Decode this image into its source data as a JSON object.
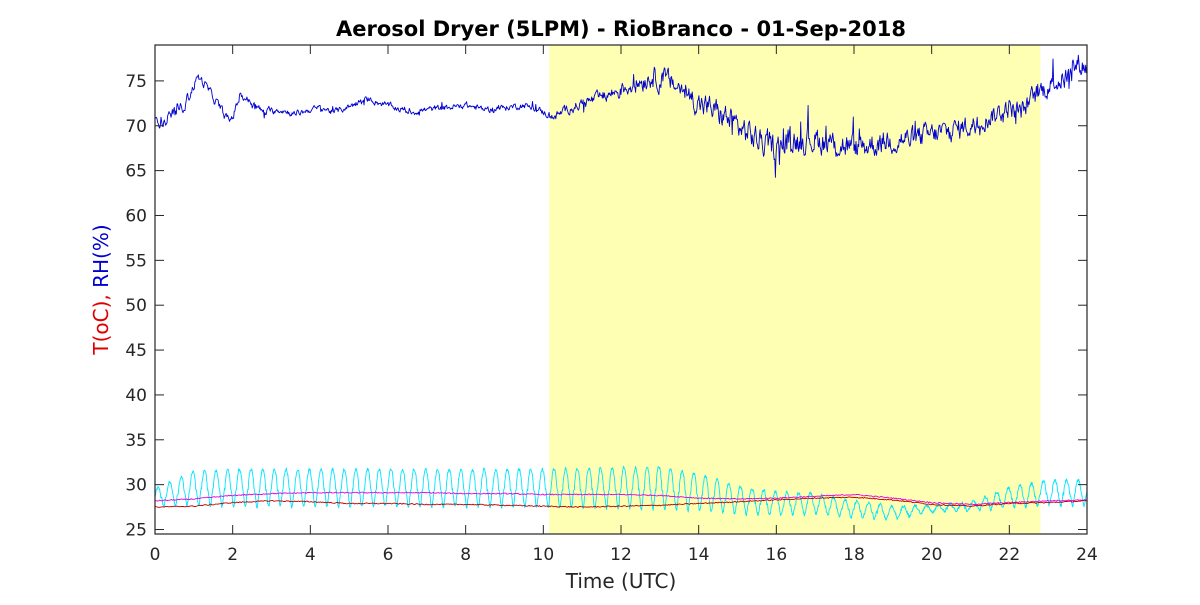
{
  "chart_data": {
    "type": "line",
    "title": "Aerosol Dryer (5LPM) - RioBranco - 01-Sep-2018",
    "xlabel": "Time (UTC)",
    "ylabel_parts": [
      {
        "text": "T(oC),",
        "color": "#e00000"
      },
      {
        "text": " RH(%)",
        "color": "#0000d0"
      }
    ],
    "xlim": [
      0,
      24
    ],
    "ylim": [
      24.5,
      79
    ],
    "x_ticks": [
      0,
      2,
      4,
      6,
      8,
      10,
      12,
      14,
      16,
      18,
      20,
      22,
      24
    ],
    "x_tick_labels": [
      "0",
      "2",
      "4",
      "6",
      "8",
      "10",
      "12",
      "14",
      "16",
      "18",
      "20",
      "22",
      "24"
    ],
    "y_ticks": [
      25,
      30,
      35,
      40,
      45,
      50,
      55,
      60,
      65,
      70,
      75
    ],
    "y_tick_labels": [
      "25",
      "30",
      "35",
      "40",
      "45",
      "50",
      "55",
      "60",
      "65",
      "70",
      "75"
    ],
    "grid": false,
    "daylight_band": {
      "x_start": 10.15,
      "x_end": 22.8,
      "color": "#ffffb3"
    },
    "series": [
      {
        "key": "rh",
        "color": "#0000d0",
        "x": [
          0,
          0.3,
          0.6,
          0.9,
          1.1,
          1.3,
          1.6,
          1.9,
          2.0,
          2.2,
          2.5,
          2.8,
          3.2,
          3.6,
          4.0,
          4.3,
          4.6,
          4.9,
          5.2,
          5.5,
          5.8,
          6.2,
          6.6,
          7.0,
          7.5,
          8.0,
          8.5,
          9.0,
          9.5,
          10.0,
          10.3,
          10.6,
          11.0,
          11.5,
          12.0,
          12.5,
          12.8,
          13.2,
          13.6,
          14.0,
          14.5,
          15.0,
          15.5,
          16.0,
          16.5,
          17.0,
          17.5,
          18.0,
          18.5,
          19.0,
          19.5,
          20.0,
          20.5,
          21.0,
          21.5,
          22.0,
          22.3,
          22.7,
          23.0,
          23.5,
          23.8,
          24.0
        ],
        "values": [
          71.0,
          70.5,
          71.5,
          73.5,
          75.5,
          74.5,
          72.5,
          70.5,
          71.0,
          73.5,
          72.5,
          71.5,
          71.8,
          71.3,
          71.8,
          72.0,
          71.5,
          72.0,
          72.5,
          73.0,
          72.5,
          72.0,
          71.5,
          71.8,
          72.0,
          72.3,
          71.8,
          72.0,
          72.3,
          71.5,
          71.0,
          71.8,
          72.5,
          73.2,
          74.0,
          75.0,
          75.5,
          75.0,
          74.0,
          72.5,
          71.5,
          70.0,
          68.5,
          67.5,
          68.5,
          68.5,
          68.0,
          67.5,
          68.0,
          68.5,
          68.5,
          69.0,
          69.5,
          70.0,
          71.0,
          72.0,
          71.5,
          73.5,
          74.5,
          75.5,
          77.0,
          76.5
        ],
        "noise": [
          0.8,
          0.8,
          0.8,
          0.6,
          0.5,
          0.5,
          0.5,
          0.5,
          0.5,
          0.5,
          0.4,
          0.4,
          0.35,
          0.35,
          0.35,
          0.35,
          0.35,
          0.35,
          0.35,
          0.35,
          0.35,
          0.35,
          0.35,
          0.35,
          0.35,
          0.35,
          0.35,
          0.35,
          0.35,
          0.4,
          0.5,
          0.5,
          0.6,
          0.7,
          0.9,
          1.1,
          1.2,
          1.2,
          1.2,
          1.3,
          1.4,
          1.5,
          1.5,
          1.5,
          1.5,
          1.5,
          1.5,
          1.5,
          1.4,
          1.4,
          1.3,
          1.3,
          1.2,
          1.2,
          1.1,
          1.1,
          1.1,
          1.2,
          1.2,
          1.2,
          1.3,
          1.3
        ]
      },
      {
        "key": "cyan",
        "color": "#00e5ff",
        "x": [
          0,
          1,
          2,
          3,
          4,
          5,
          6,
          7,
          8,
          9,
          10,
          11,
          12,
          13,
          14,
          15,
          16,
          17,
          18,
          19,
          20,
          21,
          22,
          23,
          24
        ],
        "values": [
          28.5,
          29.5,
          29.5,
          29.5,
          29.5,
          29.5,
          29.5,
          29.5,
          29.5,
          29.5,
          29.5,
          29.5,
          29.5,
          29.5,
          29.0,
          28.2,
          27.8,
          27.8,
          27.2,
          26.8,
          27.3,
          27.5,
          28.5,
          29.0,
          29.0
        ],
        "amplitude": [
          1.0,
          2.0,
          2.2,
          2.2,
          2.2,
          2.2,
          2.2,
          2.2,
          2.2,
          2.2,
          2.2,
          2.3,
          2.4,
          2.5,
          2.2,
          1.6,
          1.4,
          1.2,
          1.0,
          0.8,
          0.4,
          0.5,
          1.2,
          1.5,
          1.5
        ]
      },
      {
        "key": "magenta",
        "color": "#e000e0",
        "x": [
          0,
          1,
          2,
          3,
          4,
          5,
          6,
          7,
          8,
          9,
          10,
          11,
          12,
          13,
          14,
          15,
          16,
          17,
          18,
          19,
          20,
          21,
          22,
          23,
          24
        ],
        "values": [
          28.2,
          28.4,
          28.8,
          29.0,
          29.1,
          29.1,
          29.1,
          29.1,
          29.0,
          29.0,
          28.9,
          28.9,
          28.9,
          28.8,
          28.5,
          28.4,
          28.5,
          28.7,
          28.9,
          28.5,
          28.0,
          27.8,
          28.0,
          28.2,
          28.3
        ]
      },
      {
        "key": "red",
        "color": "#c00000",
        "x": [
          0,
          1,
          2,
          3,
          4,
          5,
          6,
          7,
          8,
          9,
          10,
          11,
          12,
          13,
          14,
          15,
          16,
          17,
          18,
          19,
          20,
          21,
          22,
          23,
          24
        ],
        "values": [
          27.5,
          27.6,
          28.0,
          28.2,
          28.1,
          27.9,
          27.9,
          27.8,
          27.8,
          27.7,
          27.6,
          27.5,
          27.6,
          27.7,
          27.9,
          28.1,
          28.3,
          28.5,
          28.6,
          28.3,
          27.8,
          27.6,
          27.9,
          28.0,
          28.2
        ]
      }
    ]
  }
}
